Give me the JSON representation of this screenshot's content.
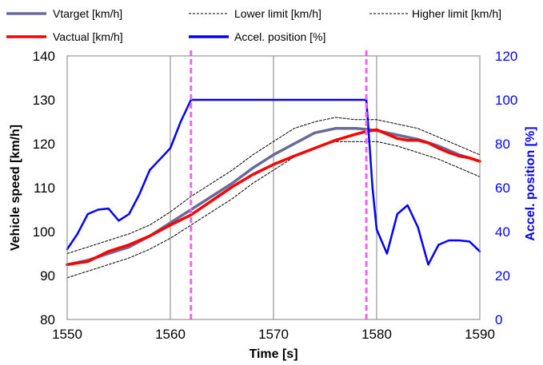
{
  "chart_data": {
    "type": "line",
    "xlabel": "Time [s]",
    "ylabel": "Vehicle speed [km/h]",
    "ylabel_right": "Accel. position [%]",
    "xlim": [
      1550,
      1590
    ],
    "ylim": [
      80,
      140
    ],
    "ylim_right": [
      0,
      120
    ],
    "xticks": [
      "1550",
      "1560",
      "1570",
      "1580",
      "1590"
    ],
    "yticks": [
      "80",
      "90",
      "100",
      "110",
      "120",
      "130",
      "140"
    ],
    "yticks_right": [
      "0",
      "20",
      "40",
      "60",
      "80",
      "100",
      "120"
    ],
    "grid": "vertical",
    "legend_position": "top",
    "markers": {
      "x": [
        1562,
        1579
      ],
      "color": "#ee66ee"
    },
    "series": [
      {
        "name": "Vtarget [km/h]",
        "axis": "left",
        "color": "#6a6a9a",
        "x": [
          1550,
          1552,
          1554,
          1556,
          1558,
          1560,
          1562,
          1564,
          1566,
          1568,
          1570,
          1572,
          1574,
          1576,
          1578,
          1579,
          1580,
          1582,
          1584,
          1586,
          1588,
          1590
        ],
        "y": [
          92.5,
          93.5,
          95,
          96.5,
          99,
          102,
          105,
          108,
          111,
          114.5,
          117.5,
          120,
          122.5,
          123.5,
          123.5,
          123.3,
          123,
          122,
          121,
          119.5,
          117.5,
          116
        ]
      },
      {
        "name": "Lower limit [km/h]",
        "axis": "left",
        "color": "#000000",
        "dash": true,
        "x": [
          1550,
          1552,
          1554,
          1556,
          1558,
          1560,
          1562,
          1564,
          1566,
          1568,
          1570,
          1572,
          1574,
          1576,
          1578,
          1580,
          1582,
          1584,
          1586,
          1588,
          1590
        ],
        "y": [
          89.5,
          91,
          92.5,
          94,
          96,
          98.5,
          101.5,
          104.5,
          107.5,
          111,
          114,
          117,
          119,
          120.5,
          120.5,
          120.5,
          119.5,
          118,
          116.5,
          114.5,
          112.5
        ]
      },
      {
        "name": "Higher limit [km/h]",
        "axis": "left",
        "color": "#000000",
        "dash": true,
        "x": [
          1550,
          1552,
          1554,
          1556,
          1558,
          1560,
          1562,
          1564,
          1566,
          1568,
          1570,
          1572,
          1574,
          1576,
          1578,
          1580,
          1582,
          1584,
          1586,
          1588,
          1590
        ],
        "y": [
          95,
          96.5,
          98,
          99.5,
          101.5,
          104.5,
          108,
          111,
          114,
          117.5,
          120.5,
          123.5,
          125,
          126,
          125.5,
          125.5,
          124.5,
          123.5,
          121.5,
          119.5,
          117.5
        ]
      },
      {
        "name": "Vactual [km/h]",
        "axis": "left",
        "color": "#ff0000",
        "x": [
          1550,
          1552,
          1554,
          1556,
          1558,
          1560,
          1562,
          1564,
          1566,
          1568,
          1570,
          1572,
          1574,
          1576,
          1578,
          1579,
          1580,
          1581,
          1582,
          1583,
          1584,
          1585,
          1586,
          1587,
          1588,
          1589,
          1590
        ],
        "y": [
          92.5,
          93.2,
          95.5,
          97,
          99,
          101.5,
          103.8,
          107,
          110.2,
          113,
          115.3,
          117.2,
          119,
          120.8,
          122.2,
          122.8,
          123.2,
          122.2,
          121.2,
          120.8,
          120.8,
          120.2,
          119,
          118,
          117.2,
          116.8,
          116
        ]
      },
      {
        "name": "Accel. position [%]",
        "axis": "right",
        "color": "#0000ff",
        "x": [
          1550,
          1551,
          1552,
          1553,
          1554,
          1555,
          1556,
          1557,
          1558,
          1559,
          1560,
          1561,
          1562,
          1563,
          1564,
          1566,
          1568,
          1570,
          1572,
          1574,
          1576,
          1578,
          1579,
          1579.3,
          1579.6,
          1580,
          1581,
          1582,
          1583,
          1584,
          1585,
          1586,
          1587,
          1588,
          1589,
          1590
        ],
        "y": [
          32,
          39,
          48,
          50,
          50.5,
          45,
          48,
          57,
          68,
          73,
          78,
          90,
          100,
          100,
          100,
          100,
          100,
          100,
          100,
          100,
          100,
          100,
          100,
          80,
          60,
          41,
          30,
          48,
          52,
          42,
          25,
          34,
          36,
          36,
          35.5,
          31
        ]
      }
    ]
  }
}
